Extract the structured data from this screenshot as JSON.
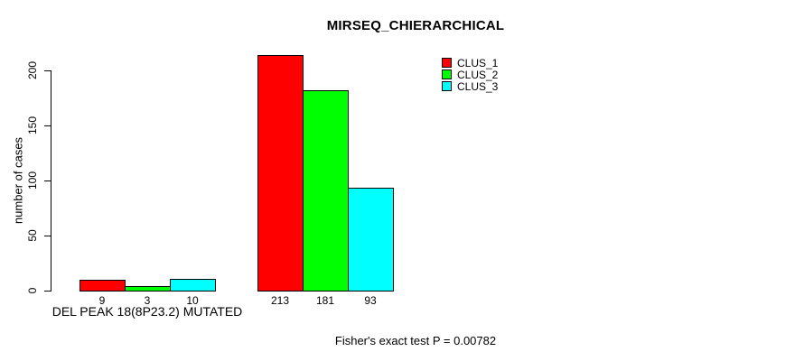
{
  "chart_data": {
    "type": "bar",
    "title": "MIRSEQ_CHIERARCHICAL",
    "xlabel": "",
    "ylabel": "number of cases",
    "ylim": [
      0,
      200
    ],
    "yticks": [
      "0",
      "50",
      "100",
      "150",
      "200"
    ],
    "grid": false,
    "legend_position": "top-right",
    "categories": [
      "DEL PEAK 18(8P23.2) MUTATED",
      ""
    ],
    "groups": [
      {
        "label": "DEL PEAK 18(8P23.2) MUTATED",
        "values": [
          9,
          3,
          10
        ]
      },
      {
        "label": "",
        "values": [
          213,
          181,
          93
        ]
      }
    ],
    "series": [
      {
        "name": "CLUS_1",
        "color": "#FF0000"
      },
      {
        "name": "CLUS_2",
        "color": "#00FF00"
      },
      {
        "name": "CLUS_3",
        "color": "#00FFFF"
      }
    ],
    "bar_value_labels": [
      [
        "9",
        "3",
        "10"
      ],
      [
        "213",
        "181",
        "93"
      ]
    ],
    "annotation": "Fisher's exact test P = 0.00782"
  }
}
